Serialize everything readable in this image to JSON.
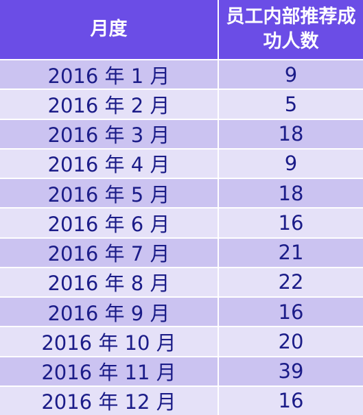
{
  "table": {
    "headers": [
      "月度",
      "员工内部推荐成功人数"
    ],
    "rows": [
      {
        "month": "2016 年 1 月",
        "count": "9"
      },
      {
        "month": "2016 年 2 月",
        "count": "5"
      },
      {
        "month": "2016 年 3 月",
        "count": "18"
      },
      {
        "month": "2016 年 4 月",
        "count": "9"
      },
      {
        "month": "2016 年 5 月",
        "count": "18"
      },
      {
        "month": "2016 年 6 月",
        "count": "16"
      },
      {
        "month": "2016 年 7 月",
        "count": "21"
      },
      {
        "month": "2016 年 8 月",
        "count": "22"
      },
      {
        "month": "2016 年 9 月",
        "count": "16"
      },
      {
        "month": "2016 年 10 月",
        "count": "20"
      },
      {
        "month": "2016 年 11 月",
        "count": "39"
      },
      {
        "month": "2016 年 12 月",
        "count": "16"
      }
    ]
  },
  "colors": {
    "header_bg": "#6b4de6",
    "row_dark": "#cbc3f1",
    "row_light": "#e5e1f8",
    "text": "#1b1c88"
  }
}
